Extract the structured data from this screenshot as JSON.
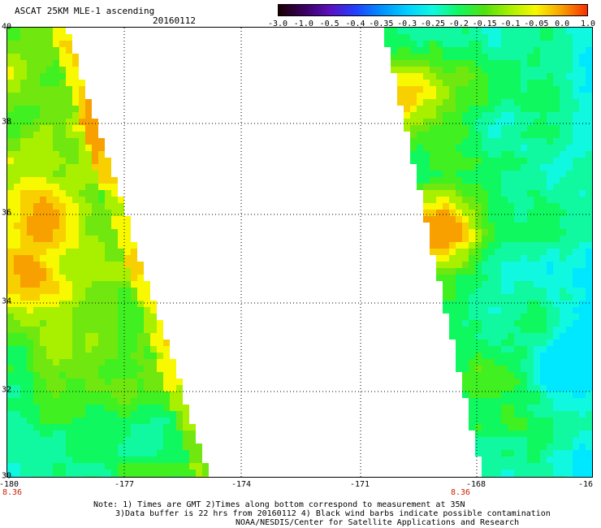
{
  "header": {
    "title": "ASCAT 25KM MLE-1 ascending",
    "date": "20160112"
  },
  "colorbar": {
    "labels": [
      "-3.0",
      "-1.0",
      "-0.5",
      "-0.4",
      "-0.35",
      "-0.3",
      "-0.25",
      "-0.2",
      "-0.15",
      "-0.1",
      "-0.05",
      "0.0",
      "1.0"
    ],
    "colors": [
      "#1a0000",
      "#3a0060",
      "#5a10c0",
      "#2040ff",
      "#0090ff",
      "#00d0ff",
      "#10f8e0",
      "#10f860",
      "#50e010",
      "#a8f000",
      "#f8f800",
      "#f8a000",
      "#f83000"
    ]
  },
  "map": {
    "y_labels": [
      "40",
      "38",
      "36",
      "34",
      "32",
      "30"
    ],
    "x_labels": [
      "-180",
      "-177",
      "-174",
      "-171",
      "-168",
      "-16"
    ],
    "time_labels": [
      "8.36",
      "8.36"
    ],
    "lon_range": [
      -180,
      -165
    ],
    "lat_range": [
      30,
      40
    ]
  },
  "footer": {
    "line1": "Note: 1) Times are GMT 2)Times along bottom correspond to measurement at 35N",
    "line2": "3)Data buffer is 22 hrs from 20160112 4) Black wind barbs indicate possible contamination",
    "line3": "NOAA/NESDIS/Center for Satellite Applications and Research"
  }
}
